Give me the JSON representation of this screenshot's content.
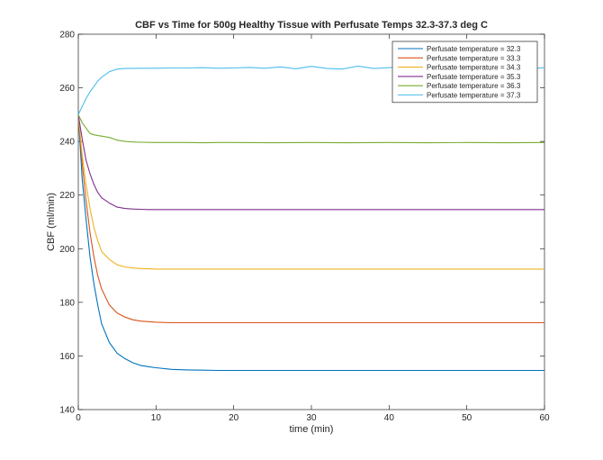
{
  "chart_data": {
    "type": "line",
    "title": "CBF vs Time for 500g Healthy Tissue with Perfusate Temps 32.3-37.3 deg C",
    "xlabel": "time (min)",
    "ylabel": "CBF (ml/min)",
    "xlim": [
      0,
      60
    ],
    "ylim": [
      140,
      280
    ],
    "xticks": [
      0,
      10,
      20,
      30,
      40,
      50,
      60
    ],
    "yticks": [
      140,
      160,
      180,
      200,
      220,
      240,
      260,
      280
    ],
    "grid": false,
    "legend_position": "top-right",
    "series": [
      {
        "name": "Perfusate temperature = 32.3",
        "color": "#0072BD",
        "x": [
          0,
          0.5,
          1,
          1.5,
          2,
          2.5,
          3,
          4,
          5,
          6,
          7,
          8,
          9,
          10,
          12,
          14,
          16,
          18,
          20,
          25,
          30,
          35,
          40,
          45,
          50,
          55,
          60
        ],
        "y": [
          250,
          226,
          211,
          197,
          187,
          179,
          172,
          165,
          161,
          159,
          157.5,
          156.5,
          156,
          155.6,
          155,
          154.8,
          154.7,
          154.6,
          154.6,
          154.6,
          154.6,
          154.6,
          154.6,
          154.6,
          154.6,
          154.6,
          154.6
        ]
      },
      {
        "name": "Perfusate temperature = 33.3",
        "color": "#D95319",
        "x": [
          0,
          0.5,
          1,
          1.5,
          2,
          2.5,
          3,
          4,
          5,
          6,
          7,
          8,
          9,
          10,
          12,
          14,
          16,
          18,
          20,
          25,
          30,
          35,
          40,
          45,
          50,
          55,
          60
        ],
        "y": [
          250,
          232,
          218,
          206,
          197,
          190,
          185,
          179,
          176,
          174.5,
          173.5,
          173,
          172.8,
          172.6,
          172.4,
          172.4,
          172.4,
          172.4,
          172.4,
          172.4,
          172.4,
          172.4,
          172.4,
          172.4,
          172.4,
          172.4,
          172.4
        ]
      },
      {
        "name": "Perfusate temperature = 34.3",
        "color": "#EDB120",
        "x": [
          0,
          0.5,
          1,
          1.5,
          2,
          2.5,
          3,
          4,
          5,
          6,
          7,
          8,
          9,
          10,
          12,
          14,
          16,
          18,
          20,
          25,
          30,
          35,
          40,
          45,
          50,
          55,
          60
        ],
        "y": [
          250,
          235,
          224,
          215,
          208,
          203,
          199,
          196,
          194,
          193.2,
          192.8,
          192.6,
          192.5,
          192.4,
          192.4,
          192.4,
          192.4,
          192.4,
          192.4,
          192.4,
          192.4,
          192.4,
          192.4,
          192.4,
          192.4,
          192.4,
          192.4
        ]
      },
      {
        "name": "Perfusate temperature = 35.3",
        "color": "#7E2F8E",
        "x": [
          0,
          0.5,
          1,
          1.5,
          2,
          2.5,
          3,
          4,
          5,
          6,
          7,
          8,
          9,
          10,
          12,
          14,
          16,
          18,
          20,
          25,
          30,
          35,
          40,
          45,
          50,
          55,
          60
        ],
        "y": [
          250,
          241,
          233,
          228,
          224,
          221,
          219,
          217,
          215.5,
          215,
          214.8,
          214.7,
          214.6,
          214.6,
          214.6,
          214.6,
          214.6,
          214.6,
          214.6,
          214.6,
          214.6,
          214.6,
          214.6,
          214.6,
          214.6,
          214.6,
          214.6
        ]
      },
      {
        "name": "Perfusate temperature = 36.3",
        "color": "#77AC30",
        "x": [
          0,
          0.5,
          1,
          1.5,
          2,
          2.5,
          3,
          4,
          5,
          6,
          7,
          8,
          10,
          12,
          14,
          16,
          18,
          20,
          25,
          30,
          35,
          40,
          45,
          50,
          55,
          60
        ],
        "y": [
          250,
          247,
          245,
          243,
          242.5,
          242.2,
          242,
          241.5,
          240.5,
          240,
          239.8,
          239.7,
          239.6,
          239.6,
          239.6,
          239.5,
          239.6,
          239.6,
          239.5,
          239.6,
          239.5,
          239.6,
          239.5,
          239.6,
          239.5,
          239.6
        ]
      },
      {
        "name": "Perfusate temperature = 37.3",
        "color": "#4DBEEE",
        "x": [
          0,
          0.5,
          1,
          1.5,
          2,
          2.5,
          3,
          4,
          5,
          6,
          8,
          10,
          12,
          14,
          16,
          18,
          20,
          22,
          24,
          26,
          28,
          30,
          32,
          34,
          36,
          38,
          40,
          42,
          44,
          46,
          48,
          50,
          52,
          54,
          56,
          58,
          60
        ],
        "y": [
          250,
          253,
          256,
          258.5,
          260.5,
          262.5,
          264,
          266,
          267,
          267.2,
          267.3,
          267.3,
          267.4,
          267.4,
          267.5,
          267.3,
          267.4,
          267.6,
          267.3,
          267.8,
          267.1,
          268,
          267.2,
          267,
          268.1,
          267.2,
          267.5,
          267.9,
          267.1,
          267.4,
          267.8,
          267.3,
          267.5,
          267.2,
          267.6,
          267.1,
          267.5
        ]
      }
    ]
  }
}
